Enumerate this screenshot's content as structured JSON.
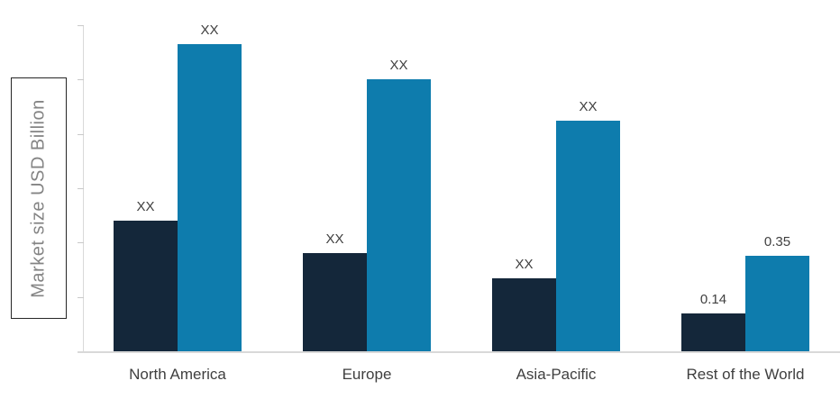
{
  "chart_data": {
    "type": "bar",
    "title": "",
    "xlabel": "",
    "ylabel": "Market size USD Billion",
    "categories": [
      "North America",
      "Europe",
      "Asia-Pacific",
      "Rest of the World"
    ],
    "series": [
      {
        "id": "series-1-dark-navy",
        "color": "#14273a",
        "values": [
          0.48,
          0.36,
          0.27,
          0.14
        ],
        "labels": [
          "XX",
          "XX",
          "XX",
          "0.14"
        ]
      },
      {
        "id": "series-2-blue",
        "color": "#0e7cad",
        "values": [
          1.13,
          1.0,
          0.85,
          0.35
        ],
        "labels": [
          "XX",
          "XX",
          "XX",
          "0.35"
        ]
      }
    ],
    "ylim": [
      0,
      1.2
    ],
    "ytick_interval": 0.2,
    "yticks_labeled": false,
    "grid": false,
    "legend_position": "none",
    "colors": {
      "axis": "#d9d9d9",
      "bar_label": "#3f3f3f",
      "category_label": "#3f3f3f",
      "ylabel_text": "#848484",
      "ylabel_box_border": "#262626"
    }
  }
}
